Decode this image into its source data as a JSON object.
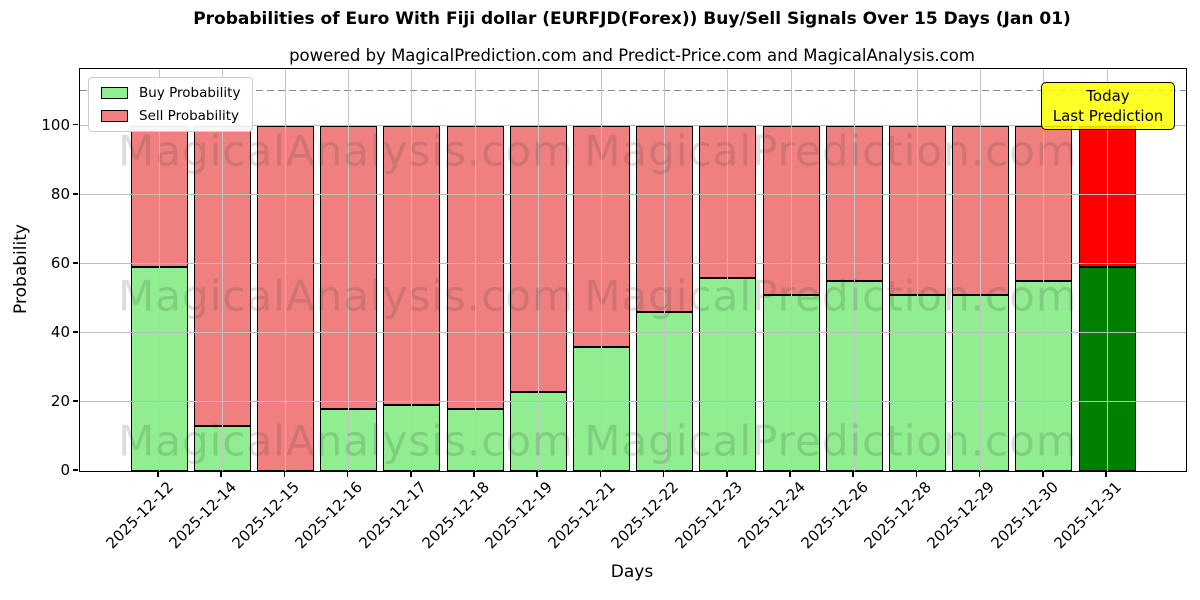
{
  "title": "Probabilities of Euro With Fiji dollar (EURFJD(Forex)) Buy/Sell Signals Over 15 Days (Jan 01)",
  "subtitle": "powered by MagicalPrediction.com and Predict-Price.com and MagicalAnalysis.com",
  "annotation": {
    "line1": "Today",
    "line2": "Last Prediction"
  },
  "watermarks": {
    "left": "MagicalAnalysis.com",
    "right": "MagicalPrediction.com"
  },
  "colors": {
    "buy": "#90ee90",
    "sell": "#f08080",
    "today_buy": "#008000",
    "today_sell": "#ff0000",
    "bar_edge": "#000000",
    "annotation_bg": "#ffff00",
    "grid": "#bdbdbd",
    "dashed_line": "#8a8a8a"
  },
  "chart_data": {
    "type": "bar",
    "stacked": true,
    "title": "Probabilities of Euro With Fiji dollar (EURFJD(Forex)) Buy/Sell Signals Over 15 Days (Jan 01)",
    "xlabel": "Days",
    "ylabel": "Probability",
    "ylim": [
      0,
      116
    ],
    "yticks": [
      0,
      20,
      40,
      60,
      80,
      100
    ],
    "grid": true,
    "legend_position": "upper left",
    "dashed_hline": 110,
    "categories": [
      "2025-12-12",
      "2025-12-14",
      "2025-12-15",
      "2025-12-16",
      "2025-12-17",
      "2025-12-18",
      "2025-12-19",
      "2025-12-21",
      "2025-12-22",
      "2025-12-23",
      "2025-12-24",
      "2025-12-26",
      "2025-12-28",
      "2025-12-29",
      "2025-12-30",
      "2025-12-31"
    ],
    "series": [
      {
        "name": "Buy Probability",
        "color": "#90ee90",
        "values": [
          59,
          13,
          0,
          18,
          19,
          18,
          23,
          36,
          46,
          56,
          51,
          55,
          51,
          51,
          55,
          59
        ]
      },
      {
        "name": "Sell Probability",
        "color": "#f08080",
        "values": [
          41,
          87,
          100,
          82,
          81,
          82,
          77,
          64,
          54,
          44,
          49,
          45,
          49,
          49,
          45,
          41
        ]
      }
    ],
    "today_index": 15,
    "today_colors": {
      "buy": "#008000",
      "sell": "#ff0000"
    }
  }
}
